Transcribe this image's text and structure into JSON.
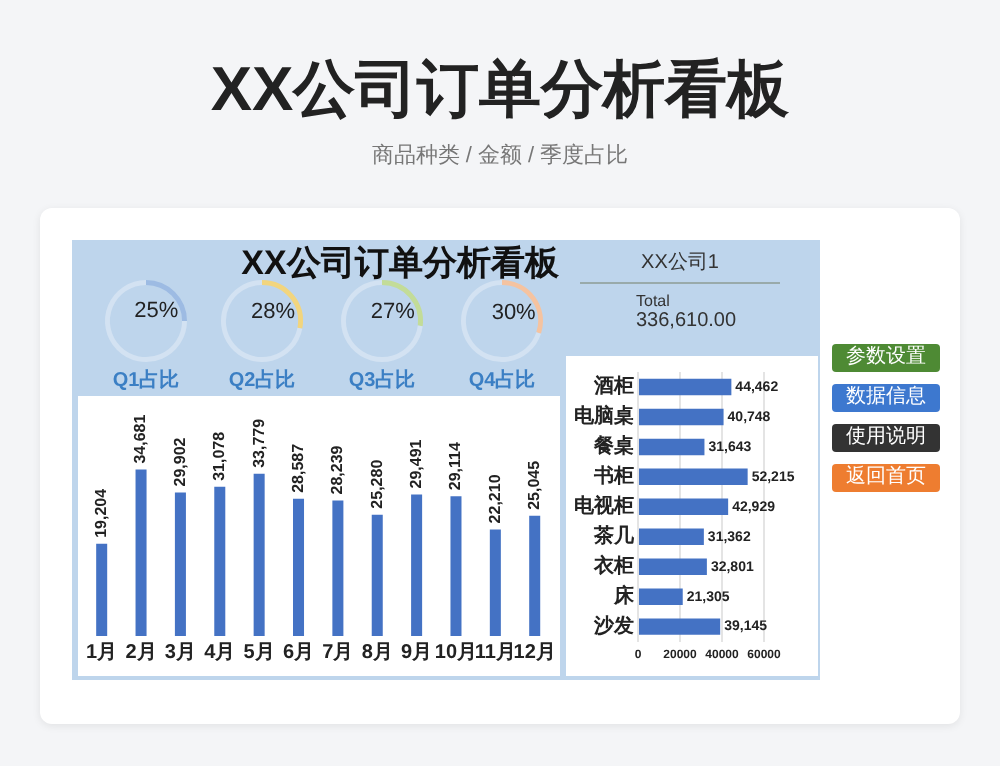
{
  "chart_data": [
    {
      "type": "other",
      "title": "XX公司订单分析看板",
      "subtitle": "商品种类 / 金额 / 季度占比",
      "annotations": [
        "XX公司订单分析看板",
        "XX公司1",
        "Total",
        "336,610.00",
        "参数设置",
        "数据信息",
        "使用说明",
        "返回首页"
      ]
    },
    {
      "type": "donut",
      "title": "Q1占比",
      "categories": [
        null,
        null
      ],
      "values": [
        25,
        75
      ],
      "colors": [
        "#9dbbe3",
        "#d3e2f2"
      ],
      "value_labels": [
        "25%",
        null
      ]
    },
    {
      "type": "donut",
      "title": "Q2占比",
      "categories": [
        null,
        null
      ],
      "values": [
        28,
        72
      ],
      "colors": [
        "#f2d57e",
        "#d3e2f2"
      ],
      "value_labels": [
        "28%",
        null
      ]
    },
    {
      "type": "donut",
      "title": "Q3占比",
      "categories": [
        null,
        null
      ],
      "values": [
        27,
        73
      ],
      "colors": [
        "#c3dc98",
        "#d3e2f2"
      ],
      "value_labels": [
        "27%",
        null
      ]
    },
    {
      "type": "donut",
      "title": "Q4占比",
      "categories": [
        null,
        null
      ],
      "values": [
        30,
        70
      ],
      "colors": [
        "#f5c3a0",
        "#d3e2f2"
      ],
      "value_labels": [
        "30%",
        null
      ]
    },
    {
      "type": "bar",
      "categories": [
        "1月",
        "2月",
        "3月",
        "4月",
        "5月",
        "6月",
        "7月",
        "8月",
        "9月",
        "10月",
        "11月",
        "12月"
      ],
      "values": [
        19204,
        34681,
        29902,
        31078,
        33779,
        28587,
        28239,
        25280,
        29491,
        29114,
        22210,
        25045
      ],
      "color": "#4472c4",
      "value_labels": [
        "19,204",
        "34,681",
        "29,902",
        "31,078",
        "33,779",
        "28,587",
        "28,239",
        "25,280",
        "29,491",
        "29,114",
        "22,210",
        "25,045"
      ]
    },
    {
      "type": "bar",
      "orientation": "horizontal",
      "categories": [
        "酒柜",
        "电脑桌",
        "餐桌",
        "书柜",
        "电视柜",
        "茶几",
        "衣柜",
        "床",
        "沙发"
      ],
      "values": [
        44462,
        40748,
        31643,
        52215,
        42929,
        31362,
        32801,
        21305,
        39145
      ],
      "color": "#4472c4",
      "value_labels": [
        "44,462",
        "40,748",
        "31,643",
        "52,215",
        "42,929",
        "31,362",
        "32,801",
        "21,305",
        "39,145"
      ],
      "xlim": [
        0,
        60000
      ],
      "xticks": [
        0,
        20000,
        40000,
        60000
      ],
      "grid": "x"
    }
  ]
}
